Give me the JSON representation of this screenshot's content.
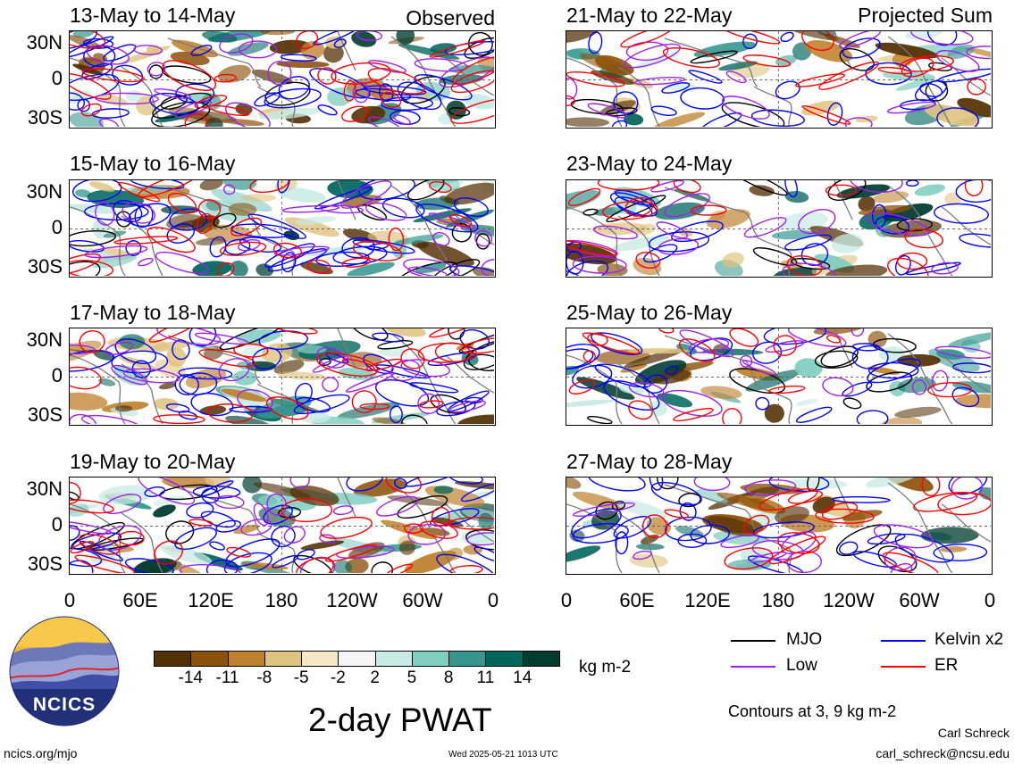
{
  "chart_data": {
    "type": "heatmap",
    "title": "2-day PWAT",
    "units": "kg m-2",
    "contour_note": "Contours at 3, 9 kg m-2",
    "colorbar": {
      "ticks": [
        "-14",
        "-11",
        "-8",
        "-5",
        "-2",
        "2",
        "5",
        "8",
        "11",
        "14"
      ],
      "colors": [
        "#543005",
        "#8c510a",
        "#bf812d",
        "#dfc27d",
        "#f6e8c3",
        "#f5f5f5",
        "#c7eae5",
        "#80cdc1",
        "#35978f",
        "#01665e",
        "#003c30"
      ]
    },
    "ylabels": [
      "30N",
      "0",
      "30S"
    ],
    "xlabels": [
      "0",
      "60E",
      "120E",
      "180",
      "120W",
      "60W",
      "0"
    ],
    "legend": [
      {
        "label": "MJO",
        "color": "#000000"
      },
      {
        "label": "Kelvin x2",
        "color": "#0000ff"
      },
      {
        "label": "Low",
        "color": "#a020f0"
      },
      {
        "label": "ER",
        "color": "#ff0000"
      }
    ],
    "panels": [
      {
        "title": "13-May to 14-May",
        "label": "Observed"
      },
      {
        "title": "21-May to 22-May",
        "label": "Projected Sum"
      },
      {
        "title": "15-May to 16-May",
        "label": ""
      },
      {
        "title": "23-May to 24-May",
        "label": ""
      },
      {
        "title": "17-May to 18-May",
        "label": ""
      },
      {
        "title": "25-May to 26-May",
        "label": ""
      },
      {
        "title": "19-May to 20-May",
        "label": ""
      },
      {
        "title": "27-May to 28-May",
        "label": ""
      }
    ]
  },
  "logo": {
    "text": "NCICS"
  },
  "footer": {
    "url": "ncics.org/mjo",
    "timestamp": "Wed 2025-05-21 1013 UTC",
    "author": "Carl Schreck",
    "email": "carl_schreck@ncsu.edu"
  }
}
